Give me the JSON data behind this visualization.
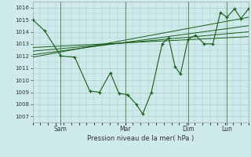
{
  "background_color": "#ceeaea",
  "grid_color": "#aacccc",
  "line_color": "#1a5c1a",
  "xlabel": "Pression niveau de la mer( hPa )",
  "ylim": [
    1006.5,
    1016.5
  ],
  "yticks": [
    1007,
    1008,
    1009,
    1010,
    1011,
    1012,
    1013,
    1014,
    1015,
    1016
  ],
  "day_positions": [
    0.13,
    0.43,
    0.72,
    0.9
  ],
  "day_labels": [
    "Sam",
    "Mar",
    "Dim",
    "Lun"
  ],
  "main_x": [
    0.0,
    0.055,
    0.13,
    0.195,
    0.265,
    0.31,
    0.36,
    0.4,
    0.44,
    0.48,
    0.51,
    0.55,
    0.6,
    0.63,
    0.66,
    0.685,
    0.72,
    0.755,
    0.795,
    0.835,
    0.87,
    0.9,
    0.935,
    0.965,
    1.0
  ],
  "main_y": [
    1015.0,
    1014.1,
    1012.0,
    1011.9,
    1009.1,
    1009.0,
    1010.6,
    1008.9,
    1008.8,
    1008.0,
    1007.2,
    1009.0,
    1013.0,
    1013.5,
    1011.1,
    1010.5,
    1013.4,
    1013.7,
    1013.0,
    1013.0,
    1015.6,
    1015.2,
    1015.9,
    1015.1,
    1015.9
  ],
  "trend_lines": [
    {
      "x": [
        0.0,
        1.0
      ],
      "y": [
        1012.7,
        1013.6
      ]
    },
    {
      "x": [
        0.0,
        1.0
      ],
      "y": [
        1012.4,
        1014.0
      ]
    },
    {
      "x": [
        0.0,
        1.0
      ],
      "y": [
        1012.1,
        1014.5
      ]
    },
    {
      "x": [
        0.0,
        1.0
      ],
      "y": [
        1011.9,
        1015.2
      ]
    }
  ]
}
